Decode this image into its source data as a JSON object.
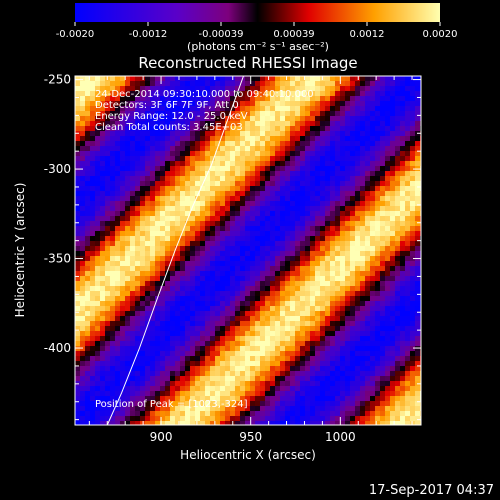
{
  "colorbar": {
    "ticks": [
      "-0.0020",
      "-0.0012",
      "-0.00039",
      "0.00039",
      "0.0012",
      "0.0020"
    ],
    "range": [
      -0.002,
      0.002
    ],
    "units_label": "(photons cm⁻² s⁻¹ asec⁻²)",
    "colormap": [
      "#0000ff",
      "#5000c8",
      "#800080",
      "#000000",
      "#ff0000",
      "#ffa000",
      "#ffffb0"
    ]
  },
  "chart_data": {
    "type": "heatmap",
    "title": "Reconstructed RHESSI Image",
    "xlabel": "Heliocentric X (arcsec)",
    "ylabel": "Heliocentric Y (arcsec)",
    "xlim": [
      852,
      1045
    ],
    "ylim": [
      -443,
      -248
    ],
    "x_ticks": [
      "900",
      "950",
      "1000"
    ],
    "x_tick_values": [
      900,
      950,
      1000
    ],
    "y_ticks": [
      "-250",
      "-300",
      "-350",
      "-400"
    ],
    "y_tick_values": [
      -250,
      -300,
      -350,
      -400
    ],
    "annotations": [
      "24-Dec-2014 09:30:10.000 to 09:40:10.000",
      "Detectors: 3F 6F 7F 9F, Att 0",
      "Energy Range: 12.0 - 25.0 keV",
      "Clean   Total counts: 3.45E+03"
    ],
    "peak_label": "Position of Peak = [1023,-324]",
    "limb_curve": {
      "x": [
        870,
        878,
        888,
        898,
        908,
        918,
        928,
        938,
        946
      ],
      "y": [
        -443,
        -425,
        -400,
        -372,
        -345,
        -320,
        -298,
        -270,
        -248
      ]
    }
  },
  "timestamp": "17-Sep-2017 04:37"
}
